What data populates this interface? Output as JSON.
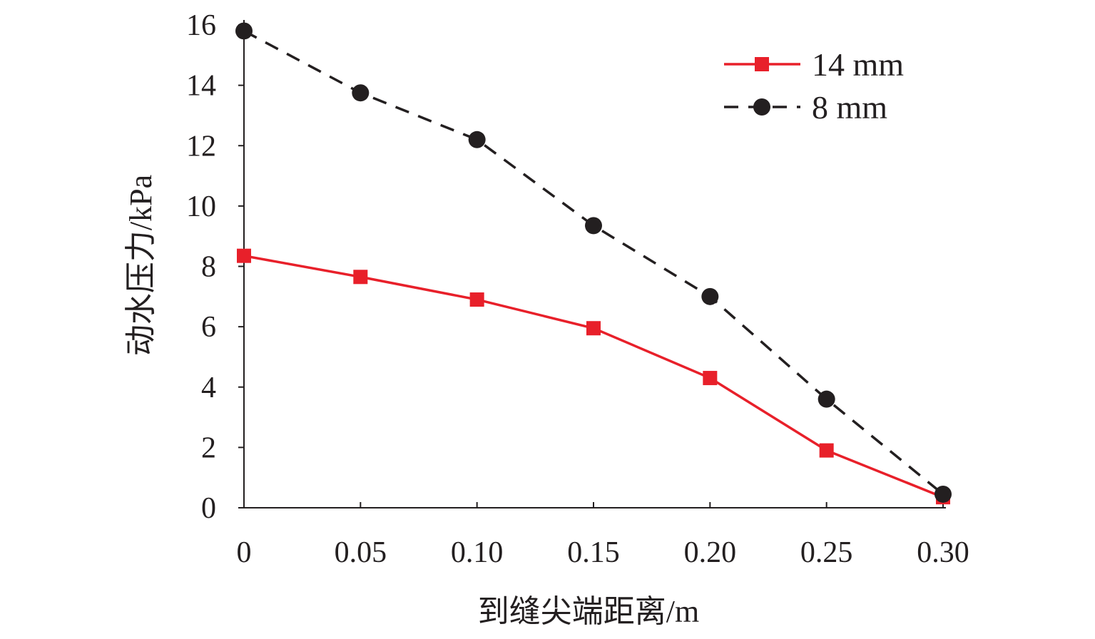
{
  "chart_data": {
    "type": "line",
    "title": "",
    "xlabel": "到缝尖端距离/m",
    "ylabel": "动水压力/kPa",
    "x": [
      0,
      0.05,
      0.1,
      0.15,
      0.2,
      0.25,
      0.3
    ],
    "x_tick_labels": [
      "0",
      "0.05",
      "0.10",
      "0.15",
      "0.20",
      "0.25",
      "0.30"
    ],
    "y_ticks": [
      0,
      2,
      4,
      6,
      8,
      10,
      12,
      14,
      16
    ],
    "y_tick_labels": [
      "0",
      "2",
      "4",
      "6",
      "8",
      "10",
      "12",
      "14",
      "16"
    ],
    "xlim": [
      0,
      0.3
    ],
    "ylim": [
      0,
      16
    ],
    "grid": false,
    "legend_position": "top-right",
    "series": [
      {
        "name": "14 mm",
        "color": "#e8202a",
        "marker": "square",
        "line": "solid",
        "values": [
          8.35,
          7.65,
          6.9,
          5.95,
          4.3,
          1.9,
          0.35
        ]
      },
      {
        "name": "8 mm",
        "color": "#231f20",
        "marker": "circle",
        "line": "dashed",
        "values": [
          15.8,
          13.75,
          12.2,
          9.35,
          7.0,
          3.6,
          0.45
        ]
      }
    ]
  }
}
